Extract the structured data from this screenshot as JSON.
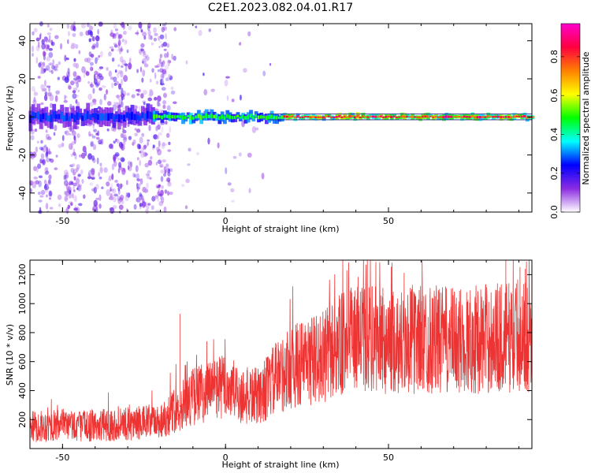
{
  "title": "C2E1.2023.082.04.01.R17",
  "chart_data": [
    {
      "type": "heatmap",
      "xlabel": "Height of straight line (km)",
      "ylabel": "Frequency (Hz)",
      "xlim": [
        -60,
        94
      ],
      "ylim": [
        -50,
        49
      ],
      "xticks": [
        -50,
        0,
        50
      ],
      "yticks": [
        -40,
        -20,
        0,
        20,
        40
      ],
      "colorbar": {
        "label": "Normalized spectral amplitude",
        "range": [
          0,
          0.97
        ],
        "ticks": [
          "0.0",
          "0.2",
          "0.4",
          "0.6",
          "0.8"
        ],
        "tick_values": [
          0.0,
          0.2,
          0.4,
          0.6,
          0.8
        ]
      },
      "colormap": [
        "#ffffff",
        "#8a2be2",
        "#0000ff",
        "#00ffff",
        "#00ff00",
        "#ffff00",
        "#ff8000",
        "#ff0040",
        "#ff00cc"
      ],
      "band": {
        "center_frequency": 0,
        "segments": [
          {
            "x_start": -60,
            "x_end": -22,
            "amplitude": 0.3,
            "width_hz": 9
          },
          {
            "x_start": -22,
            "x_end": 18,
            "amplitude": 0.55,
            "width_hz": 5
          },
          {
            "x_start": 18,
            "x_end": 94,
            "amplitude": 0.92,
            "width_hz": 3
          }
        ]
      },
      "scatter_noise_region": {
        "x_start": -60,
        "x_end": -16,
        "amplitude": 0.15
      }
    },
    {
      "type": "line",
      "xlabel": "Height of straight line (km)",
      "ylabel": "SNR (10 * v/v)",
      "xlim": [
        -60,
        94
      ],
      "ylim": [
        0,
        1300
      ],
      "xticks": [
        -50,
        0,
        50
      ],
      "yticks": [
        200,
        400,
        600,
        800,
        1000,
        1200
      ],
      "color": "#ee3333",
      "trend": {
        "x": [
          -60,
          -50,
          -40,
          -30,
          -20,
          -15,
          -10,
          -5,
          0,
          5,
          10,
          15,
          20,
          25,
          30,
          35,
          40,
          45,
          50,
          60,
          70,
          80,
          94
        ],
        "y": [
          150,
          160,
          160,
          170,
          190,
          270,
          360,
          400,
          430,
          360,
          360,
          470,
          560,
          600,
          630,
          710,
          760,
          760,
          730,
          760,
          740,
          760,
          780
        ]
      },
      "spikes": [
        {
          "x": -14,
          "y": 930
        },
        {
          "x": 86,
          "y": 1300
        },
        {
          "x": 92,
          "y": 1240
        }
      ]
    }
  ]
}
